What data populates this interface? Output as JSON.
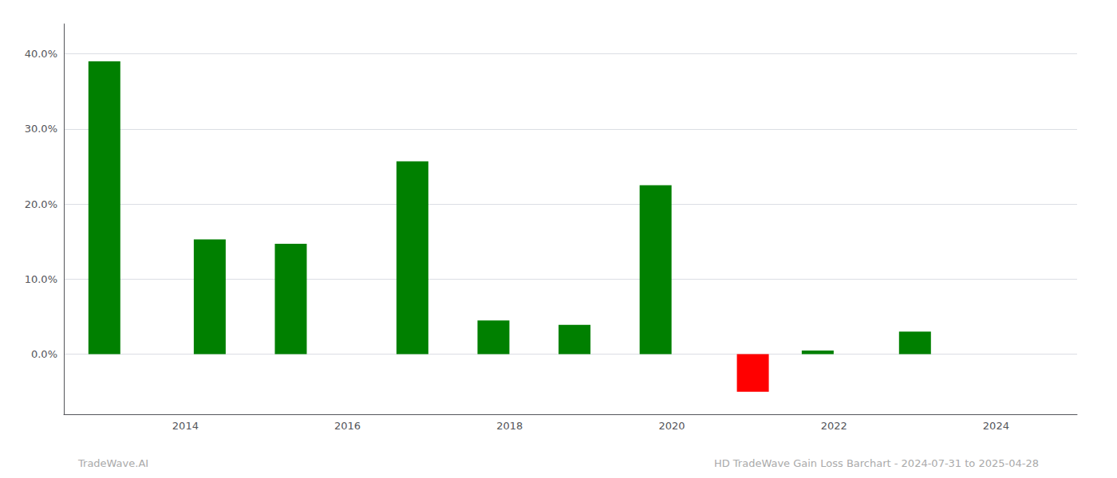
{
  "chart_data": {
    "type": "bar",
    "x": [
      2013.0,
      2014.3,
      2015.3,
      2016.8,
      2017.8,
      2018.8,
      2019.8,
      2021.0,
      2021.8,
      2023.0
    ],
    "values": [
      0.39,
      0.153,
      0.147,
      0.257,
      0.045,
      0.039,
      0.225,
      -0.05,
      0.005,
      0.03
    ],
    "colors": [
      "#008000",
      "#008000",
      "#008000",
      "#008000",
      "#008000",
      "#008000",
      "#008000",
      "#ff0000",
      "#008000",
      "#008000"
    ],
    "xlim": [
      2012.5,
      2025.0
    ],
    "xticks": [
      2014,
      2016,
      2018,
      2020,
      2022,
      2024
    ],
    "ylim": [
      -0.08,
      0.44
    ],
    "yticks": [
      {
        "value": 0.0,
        "label": "0.0%"
      },
      {
        "value": 0.1,
        "label": "10.0%"
      },
      {
        "value": 0.2,
        "label": "20.0%"
      },
      {
        "value": 0.3,
        "label": "30.0%"
      },
      {
        "value": 0.4,
        "label": "40.0%"
      }
    ],
    "grid": true,
    "annotations": [
      "TradeWave.AI",
      "HD TradeWave Gain Loss Barchart - 2024-07-31 to 2025-04-28"
    ]
  }
}
